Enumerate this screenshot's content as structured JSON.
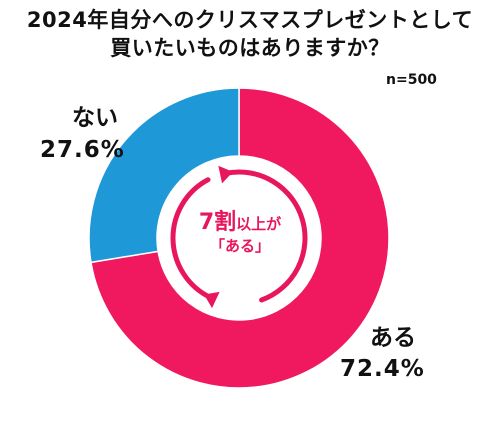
{
  "title_line1": "2024年自分へのクリスマスプレゼントとして",
  "title_line2": "買いたいものはありますか？",
  "sample_size": "n=500",
  "center": {
    "num": "7割",
    "line1_rest": "以上が",
    "line2": "「ある」"
  },
  "colors": {
    "yes": "#f0185f",
    "no": "#1e98d6",
    "accent": "#e8175d"
  },
  "chart_data": {
    "type": "pie",
    "title": "2024年自分へのクリスマスプレゼントとして買いたいものはありますか？",
    "slices": [
      {
        "label": "ある",
        "value": 72.4,
        "value_label": "72.4%",
        "color": "#f0185f"
      },
      {
        "label": "ない",
        "value": 27.6,
        "value_label": "27.6%",
        "color": "#1e98d6"
      }
    ],
    "donut": true
  }
}
